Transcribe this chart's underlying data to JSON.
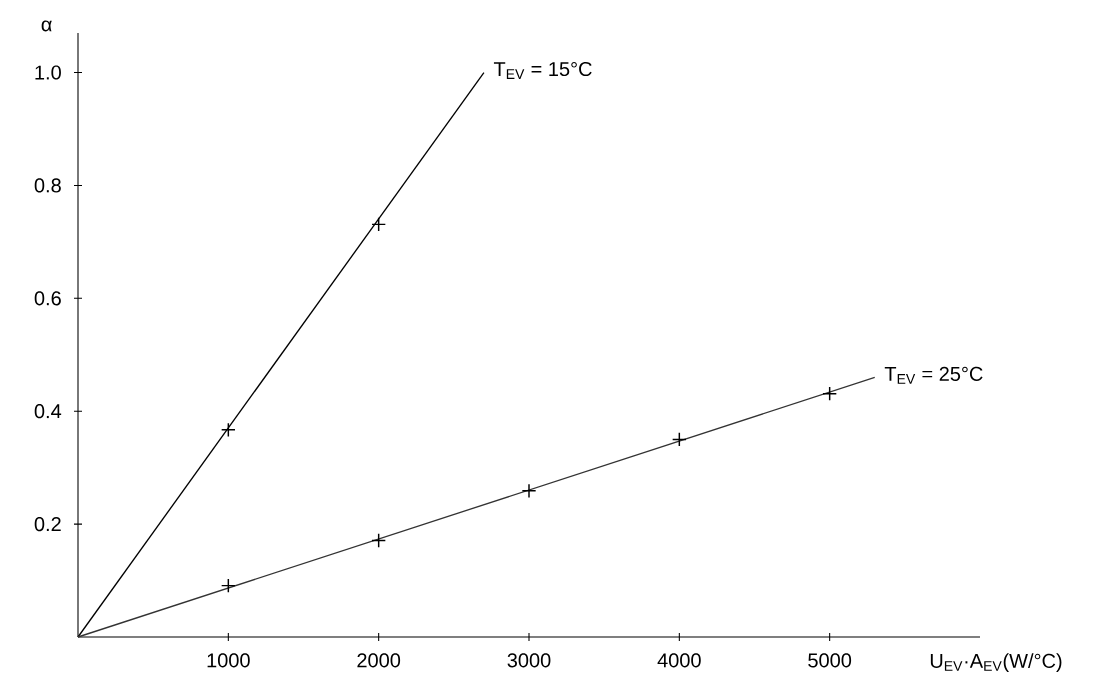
{
  "chart_data": {
    "type": "line",
    "xlabel": "U$_{EV}$·A$_{EV}$(W/°C)",
    "ylabel": "α",
    "xlim": [
      0,
      6000
    ],
    "ylim": [
      0,
      1.07
    ],
    "xticks": [
      1000,
      2000,
      3000,
      4000,
      5000
    ],
    "yticks": [
      0.2,
      0.4,
      0.6,
      0.8,
      {
        "value": 1.0,
        "label": "1.0"
      }
    ],
    "grid": false,
    "series": [
      {
        "name": "T$_{EV}$ = 15°C",
        "color": "#000000",
        "x": [
          0,
          2700
        ],
        "values": [
          0,
          1.0
        ]
      },
      {
        "type": "scatter",
        "marker": "cross",
        "color": "#000000",
        "x": [
          1000,
          2000
        ],
        "values": [
          0.367,
          0.731
        ]
      },
      {
        "name": "T$_{EV}$ = 25°C",
        "color": "#333333",
        "x": [
          0,
          5300
        ],
        "values": [
          0,
          0.46
        ]
      },
      {
        "type": "scatter",
        "marker": "cross",
        "color": "#000000",
        "x": [
          1000,
          2000,
          3000,
          4000,
          5000
        ],
        "values": [
          0.091,
          0.171,
          0.259,
          0.35,
          0.431
        ]
      }
    ]
  }
}
